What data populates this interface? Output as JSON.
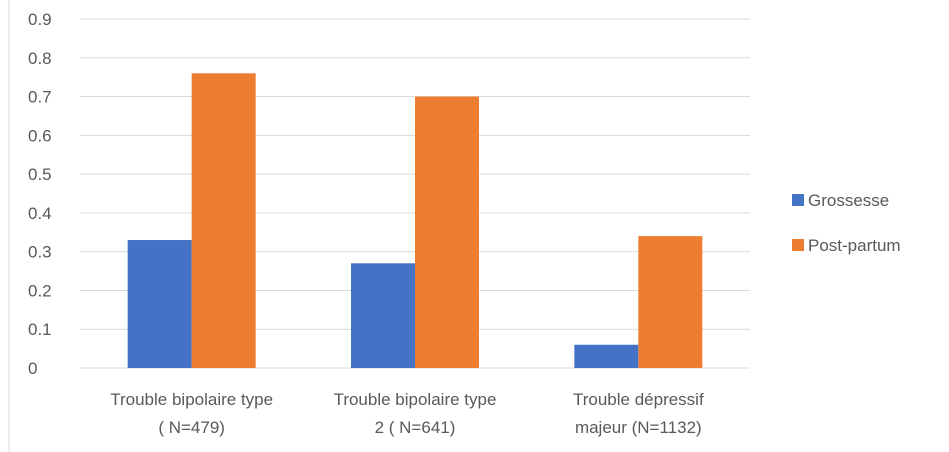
{
  "chart_data": {
    "type": "bar",
    "categories": [
      [
        "Trouble bipolaire type",
        "( N=479)"
      ],
      [
        "Trouble bipolaire type",
        "2 ( N=641)"
      ],
      [
        "Trouble dépressif",
        "majeur (N=1132)"
      ]
    ],
    "series": [
      {
        "name": "Grossesse",
        "color": "#4472C4",
        "values": [
          0.33,
          0.27,
          0.06
        ]
      },
      {
        "name": "Post-partum",
        "color": "#ED7D31",
        "values": [
          0.76,
          0.7,
          0.34
        ]
      }
    ],
    "ylim": [
      0,
      0.9
    ],
    "yticks": [
      "0",
      "0.1",
      "0.2",
      "0.3",
      "0.4",
      "0.5",
      "0.6",
      "0.7",
      "0.8",
      "0.9"
    ],
    "grid": true,
    "legend_position": "right",
    "title": "",
    "xlabel": "",
    "ylabel": ""
  }
}
